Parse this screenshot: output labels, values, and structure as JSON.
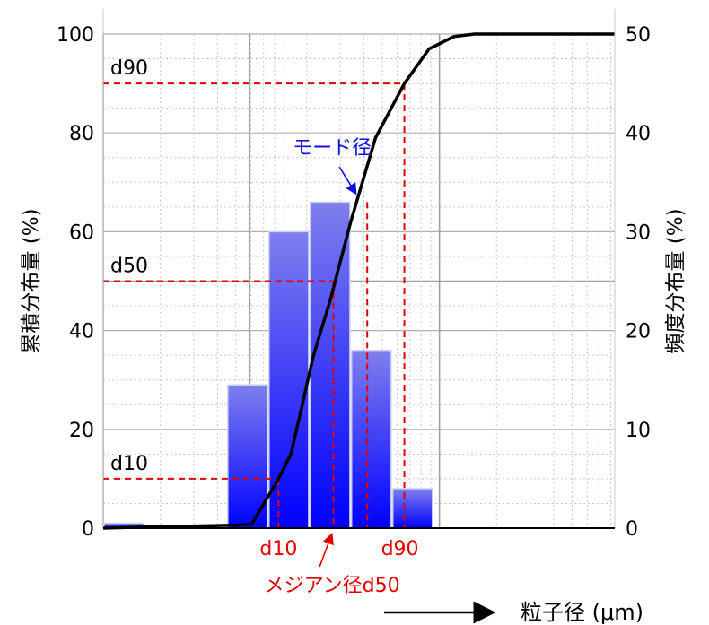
{
  "chart_data": {
    "type": "bar",
    "y_left": {
      "label": "累積分布量 (%)",
      "min": 0,
      "max": 100,
      "ticks": [
        "0",
        "20",
        "40",
        "60",
        "80",
        "100"
      ]
    },
    "y_right": {
      "label": "頻度分布量 (%)",
      "min": 0,
      "max": 50,
      "ticks": [
        "0",
        "10",
        "20",
        "30",
        "40",
        "50"
      ]
    },
    "x_label": "粒子径 (μm)",
    "x_scale": "log",
    "grid": true,
    "bins": [
      {
        "bin": 1,
        "frequency": 0.5
      },
      {
        "bin": 2,
        "frequency": 0
      },
      {
        "bin": 3,
        "frequency": 0
      },
      {
        "bin": 4,
        "frequency": 14.5
      },
      {
        "bin": 5,
        "frequency": 30
      },
      {
        "bin": 6,
        "frequency": 33
      },
      {
        "bin": 7,
        "frequency": 18
      },
      {
        "bin": 8,
        "frequency": 4
      }
    ],
    "cumulative_line": [
      {
        "x": 0,
        "y": 0
      },
      {
        "x": 0.9,
        "y": 0.2
      },
      {
        "x": 2.1,
        "y": 0.4
      },
      {
        "x": 3.2,
        "y": 0.6
      },
      {
        "x": 3.6,
        "y": 0.8
      },
      {
        "x": 4.25,
        "y": 10
      },
      {
        "x": 4.55,
        "y": 15
      },
      {
        "x": 5.1,
        "y": 35
      },
      {
        "x": 5.5,
        "y": 46
      },
      {
        "x": 6.0,
        "y": 62
      },
      {
        "x": 6.6,
        "y": 79
      },
      {
        "x": 7.3,
        "y": 90
      },
      {
        "x": 7.9,
        "y": 97
      },
      {
        "x": 8.5,
        "y": 99.5
      },
      {
        "x": 9.0,
        "y": 100
      },
      {
        "x": 12.4,
        "y": 100
      }
    ],
    "reference_lines": [
      {
        "label": "d90",
        "y": 90,
        "x": 7.3
      },
      {
        "label": "d50",
        "y": 50,
        "x": 5.58
      },
      {
        "label": "d10",
        "y": 10,
        "x": 4.25
      }
    ],
    "mode_x": 6.4,
    "annotations": {
      "mode": "モード径",
      "median": "メジアン径d50",
      "d10_below": "d10",
      "d90_below": "d90"
    },
    "colors": {
      "bar_top": "#7f7fee",
      "bar_bottom": "#0000ff",
      "line": "#000000",
      "reference": "#e00000",
      "mode_text": "#1010e0"
    }
  }
}
